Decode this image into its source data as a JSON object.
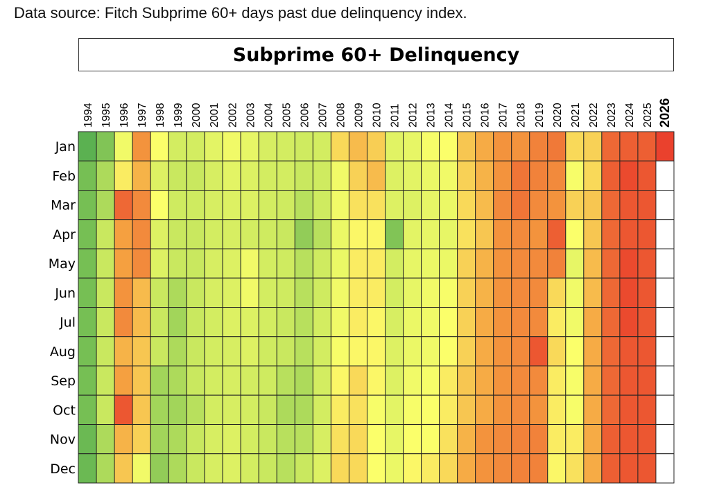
{
  "source_note": "Data source: Fitch Subprime 60+ days past due delinquency index.",
  "chart_data": {
    "type": "heatmap",
    "title": "Subprime 60+ Delinquency",
    "x": [
      "1994",
      "1995",
      "1996",
      "1997",
      "1998",
      "1999",
      "2000",
      "2001",
      "2002",
      "2003",
      "2004",
      "2005",
      "2006",
      "2007",
      "2008",
      "2009",
      "2010",
      "2011",
      "2012",
      "2013",
      "2014",
      "2015",
      "2016",
      "2017",
      "2018",
      "2019",
      "2020",
      "2021",
      "2022",
      "2023",
      "2024",
      "2025",
      "2026"
    ],
    "bold_x": [
      "2026"
    ],
    "y": [
      "Jan",
      "Feb",
      "Mar",
      "Apr",
      "May",
      "Jun",
      "Jul",
      "Aug",
      "Sep",
      "Oct",
      "Nov",
      "Dec"
    ],
    "color_scale": [
      "#3fa34d",
      "#c9e85f",
      "#fbff6a",
      "#f5a040",
      "#e8342a"
    ],
    "value_range": [
      0,
      1
    ],
    "matrix": [
      [
        0.05,
        0.12,
        0.45,
        0.78,
        0.5,
        0.3,
        0.3,
        0.38,
        0.45,
        0.4,
        0.32,
        0.3,
        0.28,
        0.3,
        0.6,
        0.68,
        0.63,
        0.37,
        0.4,
        0.48,
        0.5,
        0.65,
        0.72,
        0.78,
        0.78,
        0.82,
        0.84,
        0.6,
        0.62,
        0.88,
        0.9,
        0.9,
        0.97
      ],
      [
        0.1,
        0.2,
        0.55,
        0.7,
        0.35,
        0.25,
        0.25,
        0.32,
        0.38,
        0.35,
        0.3,
        0.3,
        0.25,
        0.28,
        0.45,
        0.62,
        0.68,
        0.35,
        0.38,
        0.42,
        0.45,
        0.62,
        0.7,
        0.78,
        0.85,
        0.82,
        0.8,
        0.48,
        0.6,
        0.9,
        0.95,
        0.92,
        null
      ],
      [
        0.1,
        0.2,
        0.88,
        0.8,
        0.5,
        0.28,
        0.28,
        0.32,
        0.35,
        0.35,
        0.3,
        0.28,
        0.22,
        0.28,
        0.45,
        0.58,
        0.58,
        0.35,
        0.35,
        0.4,
        0.42,
        0.6,
        0.68,
        0.8,
        0.85,
        0.8,
        0.78,
        0.62,
        0.65,
        0.88,
        0.92,
        0.92,
        null
      ],
      [
        0.1,
        0.25,
        0.75,
        0.8,
        0.35,
        0.25,
        0.25,
        0.3,
        0.32,
        0.3,
        0.28,
        0.25,
        0.15,
        0.22,
        0.42,
        0.52,
        0.52,
        0.12,
        0.38,
        0.4,
        0.4,
        0.58,
        0.65,
        0.78,
        0.8,
        0.78,
        0.9,
        0.5,
        0.65,
        0.88,
        0.92,
        0.92,
        null
      ],
      [
        0.1,
        0.25,
        0.75,
        0.8,
        0.35,
        0.25,
        0.25,
        0.32,
        0.35,
        0.45,
        0.3,
        0.28,
        0.22,
        0.28,
        0.42,
        0.55,
        0.55,
        0.3,
        0.4,
        0.42,
        0.42,
        0.62,
        0.7,
        0.78,
        0.8,
        0.8,
        0.82,
        0.4,
        0.68,
        0.88,
        0.95,
        0.92,
        null
      ],
      [
        0.1,
        0.25,
        0.78,
        0.68,
        0.25,
        0.2,
        0.25,
        0.32,
        0.35,
        0.45,
        0.3,
        0.28,
        0.22,
        0.28,
        0.45,
        0.55,
        0.55,
        0.3,
        0.4,
        0.45,
        0.48,
        0.62,
        0.7,
        0.78,
        0.8,
        0.8,
        0.6,
        0.45,
        0.68,
        0.88,
        0.95,
        0.92,
        null
      ],
      [
        0.1,
        0.25,
        0.8,
        0.68,
        0.25,
        0.18,
        0.25,
        0.3,
        0.35,
        0.35,
        0.3,
        0.25,
        0.22,
        0.3,
        0.45,
        0.55,
        0.52,
        0.32,
        0.42,
        0.45,
        0.5,
        0.62,
        0.72,
        0.78,
        0.8,
        0.8,
        0.55,
        0.45,
        0.72,
        0.88,
        0.95,
        0.92,
        null
      ],
      [
        0.1,
        0.25,
        0.7,
        0.65,
        0.25,
        0.2,
        0.25,
        0.3,
        0.32,
        0.35,
        0.28,
        0.25,
        0.22,
        0.3,
        0.48,
        0.52,
        0.52,
        0.35,
        0.42,
        0.45,
        0.5,
        0.62,
        0.72,
        0.78,
        0.8,
        0.92,
        0.6,
        0.5,
        0.72,
        0.88,
        0.92,
        0.92,
        null
      ],
      [
        0.1,
        0.25,
        0.75,
        0.65,
        0.18,
        0.2,
        0.25,
        0.3,
        0.32,
        0.3,
        0.28,
        0.22,
        0.2,
        0.3,
        0.52,
        0.6,
        0.52,
        0.35,
        0.45,
        0.48,
        0.55,
        0.65,
        0.72,
        0.78,
        0.8,
        0.8,
        0.55,
        0.48,
        0.72,
        0.88,
        0.92,
        0.92,
        null
      ],
      [
        0.1,
        0.25,
        0.92,
        0.65,
        0.18,
        0.18,
        0.22,
        0.3,
        0.32,
        0.3,
        0.25,
        0.2,
        0.2,
        0.3,
        0.55,
        0.58,
        0.48,
        0.38,
        0.48,
        0.5,
        0.55,
        0.65,
        0.72,
        0.78,
        0.8,
        0.78,
        0.55,
        0.48,
        0.72,
        0.88,
        0.92,
        0.92,
        null
      ],
      [
        0.08,
        0.2,
        0.7,
        0.62,
        0.18,
        0.2,
        0.25,
        0.32,
        0.35,
        0.3,
        0.25,
        0.22,
        0.22,
        0.32,
        0.58,
        0.6,
        0.5,
        0.4,
        0.5,
        0.5,
        0.58,
        0.7,
        0.78,
        0.8,
        0.82,
        0.82,
        0.55,
        0.55,
        0.72,
        0.9,
        0.92,
        0.92,
        null
      ],
      [
        0.08,
        0.2,
        0.65,
        0.45,
        0.15,
        0.2,
        0.25,
        0.32,
        0.35,
        0.3,
        0.25,
        0.22,
        0.25,
        0.35,
        0.6,
        0.6,
        0.5,
        0.42,
        0.52,
        0.55,
        0.6,
        0.72,
        0.78,
        0.8,
        0.82,
        0.82,
        0.52,
        0.58,
        0.72,
        0.9,
        0.92,
        0.92,
        null
      ]
    ]
  }
}
